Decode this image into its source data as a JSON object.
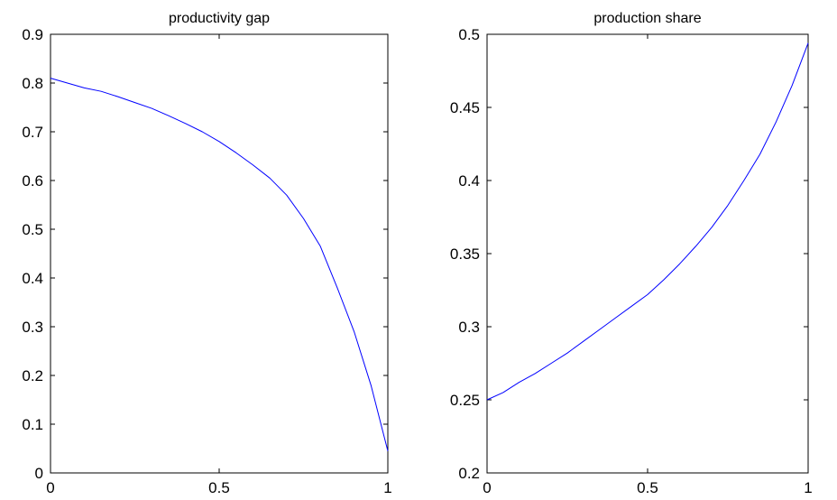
{
  "chart_data": [
    {
      "type": "line",
      "title": "productivity gap",
      "xlabel": "",
      "ylabel": "",
      "xlim": [
        0,
        1
      ],
      "ylim": [
        0,
        0.9
      ],
      "xticks": [
        0,
        0.5,
        1
      ],
      "xtick_labels": [
        "0",
        "0.5",
        "1"
      ],
      "yticks": [
        0,
        0.1,
        0.2,
        0.3,
        0.4,
        0.5,
        0.6,
        0.7,
        0.8,
        0.9
      ],
      "ytick_labels": [
        "0",
        "0.1",
        "0.2",
        "0.3",
        "0.4",
        "0.5",
        "0.6",
        "0.7",
        "0.8",
        "0.9"
      ],
      "grid": false,
      "line_color": "#0000ff",
      "series": [
        {
          "x": [
            0,
            0.05,
            0.1,
            0.15,
            0.2,
            0.25,
            0.3,
            0.35,
            0.4,
            0.45,
            0.5,
            0.55,
            0.6,
            0.65,
            0.7,
            0.75,
            0.8,
            0.85,
            0.9,
            0.95,
            1.0
          ],
          "values": [
            0.81,
            0.8,
            0.79,
            0.783,
            0.772,
            0.76,
            0.748,
            0.733,
            0.717,
            0.7,
            0.68,
            0.657,
            0.632,
            0.605,
            0.57,
            0.522,
            0.465,
            0.38,
            0.29,
            0.18,
            0.045
          ]
        }
      ]
    },
    {
      "type": "line",
      "title": "production share",
      "xlabel": "",
      "ylabel": "",
      "xlim": [
        0,
        1
      ],
      "ylim": [
        0.2,
        0.5
      ],
      "xticks": [
        0,
        0.5,
        1
      ],
      "xtick_labels": [
        "0",
        "0.5",
        "1"
      ],
      "yticks": [
        0.2,
        0.25,
        0.3,
        0.35,
        0.4,
        0.45,
        0.5
      ],
      "ytick_labels": [
        "0.2",
        "0.25",
        "0.3",
        "0.35",
        "0.4",
        "0.45",
        "0.5"
      ],
      "grid": false,
      "line_color": "#0000ff",
      "series": [
        {
          "x": [
            0,
            0.05,
            0.1,
            0.15,
            0.2,
            0.25,
            0.3,
            0.35,
            0.4,
            0.45,
            0.5,
            0.55,
            0.6,
            0.65,
            0.7,
            0.75,
            0.8,
            0.85,
            0.9,
            0.95,
            1.0
          ],
          "values": [
            0.25,
            0.255,
            0.262,
            0.268,
            0.275,
            0.282,
            0.29,
            0.298,
            0.306,
            0.314,
            0.322,
            0.332,
            0.343,
            0.355,
            0.368,
            0.383,
            0.4,
            0.418,
            0.44,
            0.465,
            0.494
          ]
        }
      ]
    }
  ]
}
